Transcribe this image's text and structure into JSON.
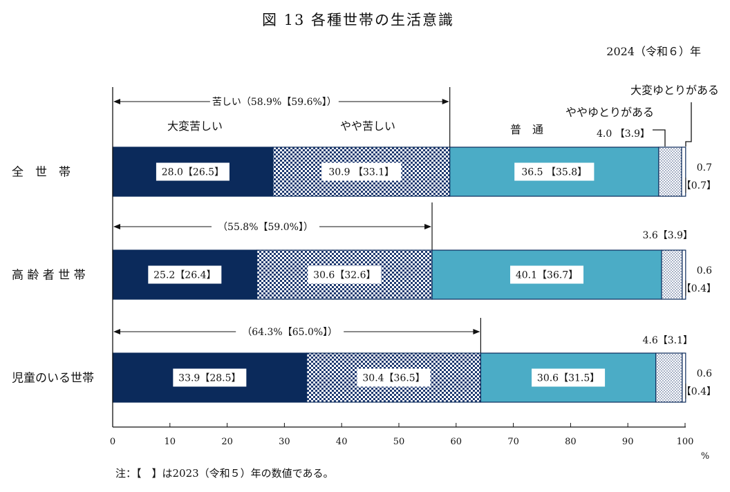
{
  "title": "図 13 各種世帯の生活意識",
  "subtitle": "2024（令和６）年",
  "unit": "%",
  "note": "注：【　】は2023（令和５）年の数値である。",
  "segment_labels": [
    "大変苦しい",
    "やや苦しい",
    "普　通",
    "ややゆとりがある",
    "大変ゆとりがある"
  ],
  "chart_data": {
    "type": "bar",
    "orientation": "horizontal",
    "stacked": true,
    "categories": [
      "全　世　帯",
      "高 齢 者 世 帯",
      "児童のいる世帯"
    ],
    "series": [
      {
        "name": "大変苦しい",
        "values": [
          28.0,
          25.2,
          33.9
        ],
        "prev": [
          26.5,
          26.4,
          28.5
        ],
        "color": "#0b2a5b"
      },
      {
        "name": "やや苦しい",
        "values": [
          30.9,
          30.6,
          30.4
        ],
        "prev": [
          33.1,
          32.6,
          36.5
        ],
        "color": "#1f3a70"
      },
      {
        "name": "普　通",
        "values": [
          36.5,
          40.1,
          30.6
        ],
        "prev": [
          35.8,
          36.7,
          31.5
        ],
        "color": "#4bacc6"
      },
      {
        "name": "ややゆとりがある",
        "values": [
          4.0,
          3.6,
          4.6
        ],
        "prev": [
          3.9,
          3.9,
          3.1
        ],
        "color": "#ffffff"
      },
      {
        "name": "大変ゆとりがある",
        "values": [
          0.7,
          0.6,
          0.6
        ],
        "prev": [
          0.7,
          0.4,
          0.4
        ],
        "color": "#ffffff"
      }
    ],
    "labels": {
      "s0": [
        "28.0【26.5】",
        "25.2【26.4】",
        "33.9【28.5】"
      ],
      "s1": [
        "30.9 【33.1】",
        "30.6【32.6】",
        "30.4【36.5】"
      ],
      "s2": [
        "36.5 【35.8】",
        "40.1【36.7】",
        "30.6【31.5】"
      ],
      "s3": [
        "4.0 【3.9】",
        "3.6【3.9】",
        "4.6【3.1】"
      ],
      "s4a": [
        "0.7",
        "0.6",
        "0.6"
      ],
      "s4b": [
        "【0.7】",
        "【0.4】",
        "【0.4】"
      ]
    },
    "brackets": [
      "苦しい（58.9%【59.6%】）",
      "（55.8%【59.0%】）",
      "（64.3%【65.0%】）"
    ],
    "bracket_totals": [
      58.9,
      55.8,
      64.3
    ],
    "xlim": [
      0,
      100
    ],
    "xticks": [
      "0",
      "10",
      "20",
      "30",
      "40",
      "50",
      "60",
      "70",
      "80",
      "90",
      "100"
    ]
  }
}
